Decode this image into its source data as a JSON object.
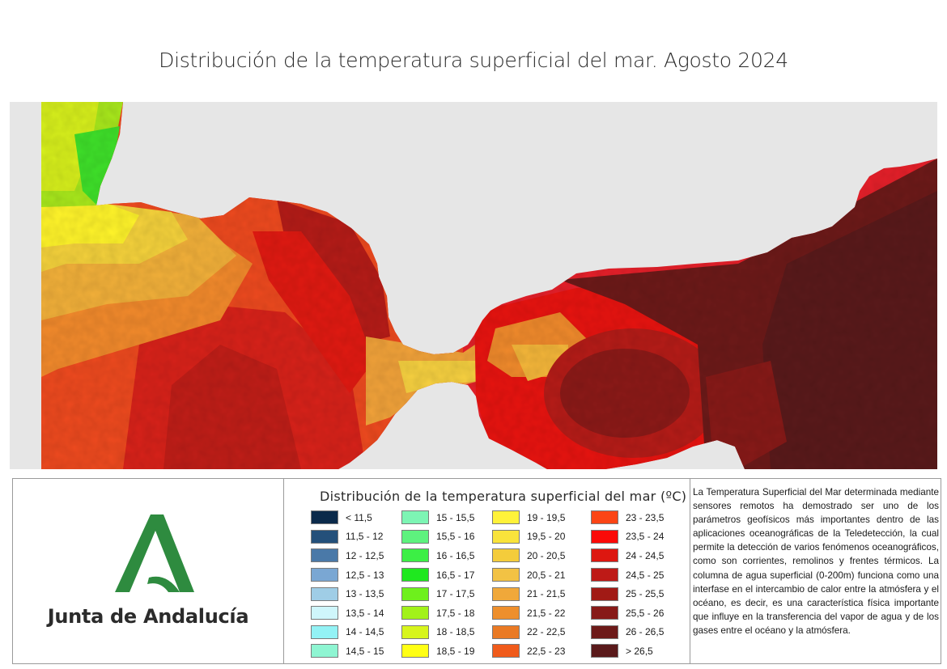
{
  "title": "Distribución de la temperatura superficial del mar. Agosto 2024",
  "map": {
    "land_color": "#e6e6e6"
  },
  "logo": {
    "text": "Junta de Andalucía",
    "color": "#2e8b3f"
  },
  "legend": {
    "title": "Distribución de la temperatura superficial del mar (ºC)",
    "columns": [
      [
        {
          "label": "< 11,5",
          "color": "#0b2a4a"
        },
        {
          "label": "11,5 - 12",
          "color": "#24507a"
        },
        {
          "label": "12 - 12,5",
          "color": "#4a79a8"
        },
        {
          "label": "12,5 - 13",
          "color": "#7aa7d3"
        },
        {
          "label": "13 - 13,5",
          "color": "#9fcde6"
        },
        {
          "label": "13,5 - 14",
          "color": "#cff6fb"
        },
        {
          "label": "14 - 14,5",
          "color": "#93f2f5"
        },
        {
          "label": "14,5 - 15",
          "color": "#8ef5d2"
        }
      ],
      [
        {
          "label": "15 - 15,5",
          "color": "#7df5b4"
        },
        {
          "label": "15,5 - 16",
          "color": "#5ef27e"
        },
        {
          "label": "16 - 16,5",
          "color": "#3cef45"
        },
        {
          "label": "16,5 - 17",
          "color": "#1fe81f"
        },
        {
          "label": "17 - 17,5",
          "color": "#6ef01c"
        },
        {
          "label": "17,5 - 18",
          "color": "#a2f21a"
        },
        {
          "label": "18 - 18,5",
          "color": "#d7f51c"
        },
        {
          "label": "18,5 - 19",
          "color": "#ffff14"
        }
      ],
      [
        {
          "label": "19 - 19,5",
          "color": "#fff23a"
        },
        {
          "label": "19,5 - 20",
          "color": "#f9e33b"
        },
        {
          "label": "20 - 20,5",
          "color": "#f4cc3b"
        },
        {
          "label": "20,5 - 21",
          "color": "#f2c244"
        },
        {
          "label": "21 - 21,5",
          "color": "#f0a83a"
        },
        {
          "label": "21,5 - 22",
          "color": "#ee8f2c"
        },
        {
          "label": "22 - 22,5",
          "color": "#ea7a24"
        },
        {
          "label": "22,5 - 23",
          "color": "#f05b1b"
        }
      ],
      [
        {
          "label": "23 - 23,5",
          "color": "#fb4515"
        },
        {
          "label": "23,5 - 24",
          "color": "#fb0a08"
        },
        {
          "label": "24 - 24,5",
          "color": "#dd1710"
        },
        {
          "label": "24,5 - 25",
          "color": "#be1a17"
        },
        {
          "label": "25 - 25,5",
          "color": "#a11a15"
        },
        {
          "label": "25,5 - 26",
          "color": "#871a18"
        },
        {
          "label": "26 - 26,5",
          "color": "#6d1a19"
        },
        {
          "label": "> 26,5",
          "color": "#5a1a1b"
        }
      ]
    ]
  },
  "description": "La Temperatura Superficial del Mar determinada mediante sensores remotos ha demostrado ser uno de los parámetros geofísicos más importantes dentro de las aplicaciones oceanográficas de la Teledetección, la cual permite la detección de varios fenómenos oceanográficos, como son corrientes, remolinos y frentes térmicos. La columna de agua superficial (0-200m) funciona como una interfase en el intercambio de calor entre la atmósfera y el océano, es decir, es una característica física importante que influye en la transferencia del vapor de agua y de los gases entre el océano y la atmósfera."
}
